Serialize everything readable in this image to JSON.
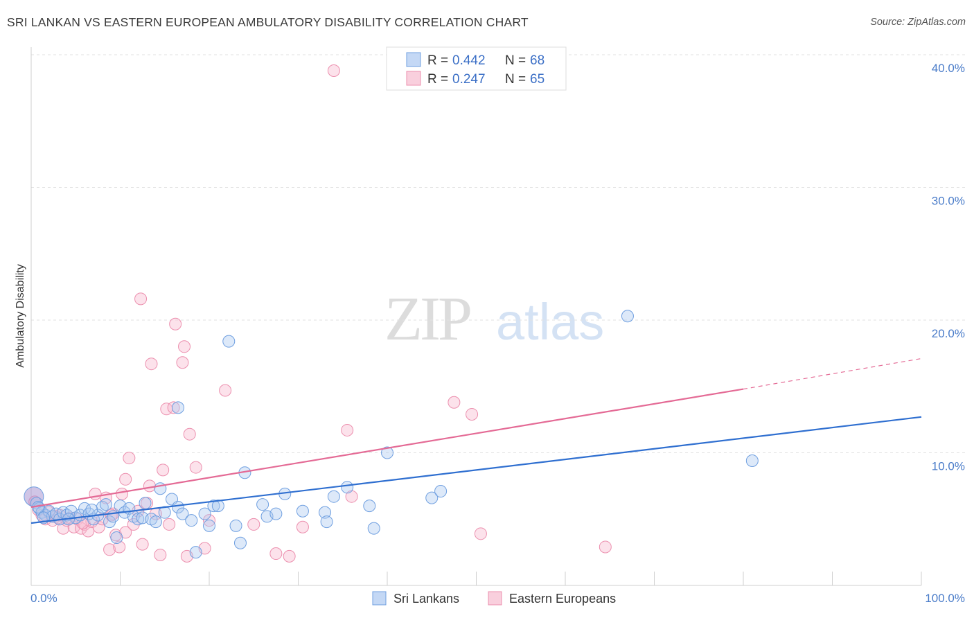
{
  "title": "SRI LANKAN VS EASTERN EUROPEAN AMBULATORY DISABILITY CORRELATION CHART",
  "source": "Source: ZipAtlas.com",
  "watermark": {
    "zip": "ZIP",
    "atlas": "atlas"
  },
  "legend": {
    "r_label": "R =",
    "n_label": "N =",
    "rows": [
      {
        "r": "0.442",
        "n": "68"
      },
      {
        "r": "0.247",
        "n": "65"
      }
    ]
  },
  "chart_data": {
    "type": "scatter",
    "title": "SRI LANKAN VS EASTERN EUROPEAN AMBULATORY DISABILITY CORRELATION CHART",
    "xlabel": "",
    "ylabel": "Ambulatory Disability",
    "xlim": [
      0,
      100
    ],
    "ylim": [
      0,
      40
    ],
    "x_tick_labels": [
      "0.0%",
      "100.0%"
    ],
    "y_ticks": [
      10,
      20,
      30,
      40
    ],
    "y_tick_labels": [
      "10.0%",
      "20.0%",
      "30.0%",
      "40.0%"
    ],
    "grid": true,
    "legend_position": "top-center",
    "colors": {
      "sri_lankans": "#6f9fe0",
      "eastern_europeans": "#ec8fae",
      "sri_line": "#2f6fd0",
      "east_line": "#e46a95"
    },
    "series": [
      {
        "name": "Sri Lankans",
        "r": 0.442,
        "n": 68,
        "trend": {
          "x": [
            0,
            100
          ],
          "y": [
            4.7,
            12.7
          ]
        },
        "points": [
          [
            0.3,
            6.7
          ],
          [
            0.6,
            6.2
          ],
          [
            0.9,
            5.8
          ],
          [
            1.2,
            5.5
          ],
          [
            1.6,
            5.3
          ],
          [
            2.0,
            5.6
          ],
          [
            2.4,
            5.2
          ],
          [
            2.8,
            5.4
          ],
          [
            3.2,
            5.0
          ],
          [
            3.6,
            5.5
          ],
          [
            4.0,
            5.3
          ],
          [
            4.5,
            5.6
          ],
          [
            5.0,
            5.1
          ],
          [
            5.5,
            5.3
          ],
          [
            6.0,
            5.8
          ],
          [
            6.5,
            5.4
          ],
          [
            7.0,
            5.0
          ],
          [
            7.5,
            5.3
          ],
          [
            8.0,
            5.9
          ],
          [
            8.4,
            6.1
          ],
          [
            8.8,
            4.8
          ],
          [
            9.2,
            5.2
          ],
          [
            9.6,
            3.6
          ],
          [
            10.0,
            6.0
          ],
          [
            10.5,
            5.5
          ],
          [
            11.0,
            5.8
          ],
          [
            11.5,
            5.2
          ],
          [
            12.0,
            5.0
          ],
          [
            12.5,
            5.1
          ],
          [
            12.8,
            6.2
          ],
          [
            13.5,
            5.0
          ],
          [
            14.0,
            4.8
          ],
          [
            14.5,
            7.3
          ],
          [
            15.0,
            5.5
          ],
          [
            15.8,
            6.5
          ],
          [
            16.5,
            5.9
          ],
          [
            17.0,
            5.4
          ],
          [
            18.0,
            4.9
          ],
          [
            18.5,
            2.5
          ],
          [
            19.5,
            5.4
          ],
          [
            20.0,
            4.5
          ],
          [
            20.5,
            6.0
          ],
          [
            21.0,
            6.0
          ],
          [
            22.2,
            18.4
          ],
          [
            23.0,
            4.5
          ],
          [
            23.5,
            3.2
          ],
          [
            24.0,
            8.5
          ],
          [
            26.0,
            6.1
          ],
          [
            26.5,
            5.2
          ],
          [
            27.5,
            5.4
          ],
          [
            28.5,
            6.9
          ],
          [
            30.5,
            5.6
          ],
          [
            33.0,
            5.5
          ],
          [
            33.2,
            4.8
          ],
          [
            34.0,
            6.7
          ],
          [
            35.5,
            7.4
          ],
          [
            38.0,
            6.0
          ],
          [
            38.5,
            4.3
          ],
          [
            40.0,
            10.0
          ],
          [
            45.0,
            6.6
          ],
          [
            46.0,
            7.1
          ],
          [
            67.0,
            20.3
          ],
          [
            81.0,
            9.4
          ],
          [
            16.5,
            13.4
          ],
          [
            0.8,
            5.9
          ],
          [
            1.4,
            5.1
          ],
          [
            4.2,
            5.0
          ],
          [
            6.8,
            5.7
          ]
        ]
      },
      {
        "name": "Eastern Europeans",
        "r": 0.247,
        "n": 65,
        "trend": {
          "x": [
            0,
            80
          ],
          "y": [
            5.9,
            14.8
          ],
          "dashed_to": [
            100,
            17.1
          ]
        },
        "points": [
          [
            0.4,
            6.3
          ],
          [
            0.8,
            5.7
          ],
          [
            1.2,
            5.3
          ],
          [
            1.6,
            5.0
          ],
          [
            2.0,
            5.5
          ],
          [
            2.4,
            4.9
          ],
          [
            2.8,
            5.2
          ],
          [
            3.2,
            5.3
          ],
          [
            3.6,
            4.3
          ],
          [
            4.0,
            4.9
          ],
          [
            4.4,
            5.1
          ],
          [
            4.8,
            4.4
          ],
          [
            5.2,
            5.0
          ],
          [
            5.6,
            4.3
          ],
          [
            6.0,
            4.6
          ],
          [
            6.4,
            4.1
          ],
          [
            6.8,
            4.8
          ],
          [
            7.2,
            6.9
          ],
          [
            7.6,
            4.4
          ],
          [
            8.0,
            5.0
          ],
          [
            8.4,
            6.6
          ],
          [
            8.8,
            2.7
          ],
          [
            9.2,
            5.4
          ],
          [
            9.5,
            3.8
          ],
          [
            9.9,
            2.9
          ],
          [
            10.2,
            6.9
          ],
          [
            10.6,
            4.0
          ],
          [
            10.6,
            8.0
          ],
          [
            11.0,
            9.6
          ],
          [
            11.5,
            4.6
          ],
          [
            12.0,
            5.6
          ],
          [
            12.3,
            21.6
          ],
          [
            12.5,
            3.1
          ],
          [
            13.0,
            6.2
          ],
          [
            13.3,
            7.5
          ],
          [
            13.5,
            16.7
          ],
          [
            14.0,
            5.4
          ],
          [
            14.5,
            2.3
          ],
          [
            14.8,
            8.7
          ],
          [
            15.2,
            13.3
          ],
          [
            15.5,
            4.6
          ],
          [
            16.0,
            13.4
          ],
          [
            16.2,
            19.7
          ],
          [
            17.0,
            16.8
          ],
          [
            17.2,
            18.0
          ],
          [
            17.5,
            2.2
          ],
          [
            17.8,
            11.4
          ],
          [
            18.5,
            8.9
          ],
          [
            19.5,
            2.8
          ],
          [
            20.0,
            4.9
          ],
          [
            21.8,
            14.7
          ],
          [
            25.0,
            4.6
          ],
          [
            27.5,
            2.4
          ],
          [
            29.0,
            2.2
          ],
          [
            30.5,
            4.4
          ],
          [
            34.0,
            38.8
          ],
          [
            35.5,
            11.7
          ],
          [
            36.0,
            6.7
          ],
          [
            47.5,
            13.8
          ],
          [
            49.5,
            12.9
          ],
          [
            50.5,
            3.9
          ],
          [
            64.5,
            2.9
          ],
          [
            3.0,
            5.1
          ],
          [
            5.8,
            4.7
          ],
          [
            9.0,
            5.3
          ]
        ]
      }
    ]
  }
}
